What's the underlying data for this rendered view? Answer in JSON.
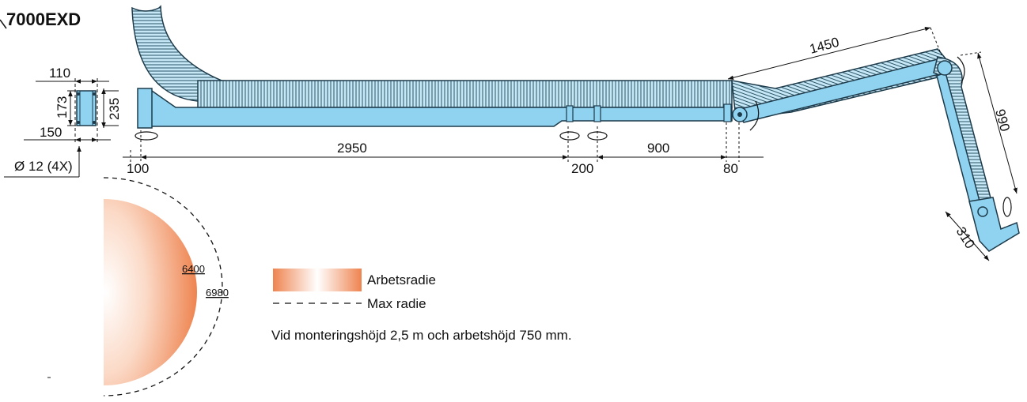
{
  "title": "7000EXD",
  "dimensions": {
    "mount_width": "110",
    "mount_height": "173",
    "mount_depth": "235",
    "mount_base": "150",
    "bolt_hole": "Ø 12 (4X)",
    "inner_arm": "2950",
    "start_offset": "100",
    "mid_segment": "200",
    "outer_segment": "900",
    "joint_offset": "80",
    "upper_arm": "1450",
    "fore_arm": "990",
    "hood": "310",
    "work_radius_value": "6400",
    "max_radius_value": "6980"
  },
  "legend": {
    "working_radius": "Arbetsradie",
    "max_radius": "Max radie",
    "note": "Vid monteringshöjd 2,5 m och arbetshöjd 750 mm."
  },
  "colors": {
    "arm_fill": "#8fd3f0",
    "arm_stroke": "#1d3a4a",
    "radius_gradient_edge": "#ee8450",
    "radius_gradient_center": "#ffffff"
  }
}
